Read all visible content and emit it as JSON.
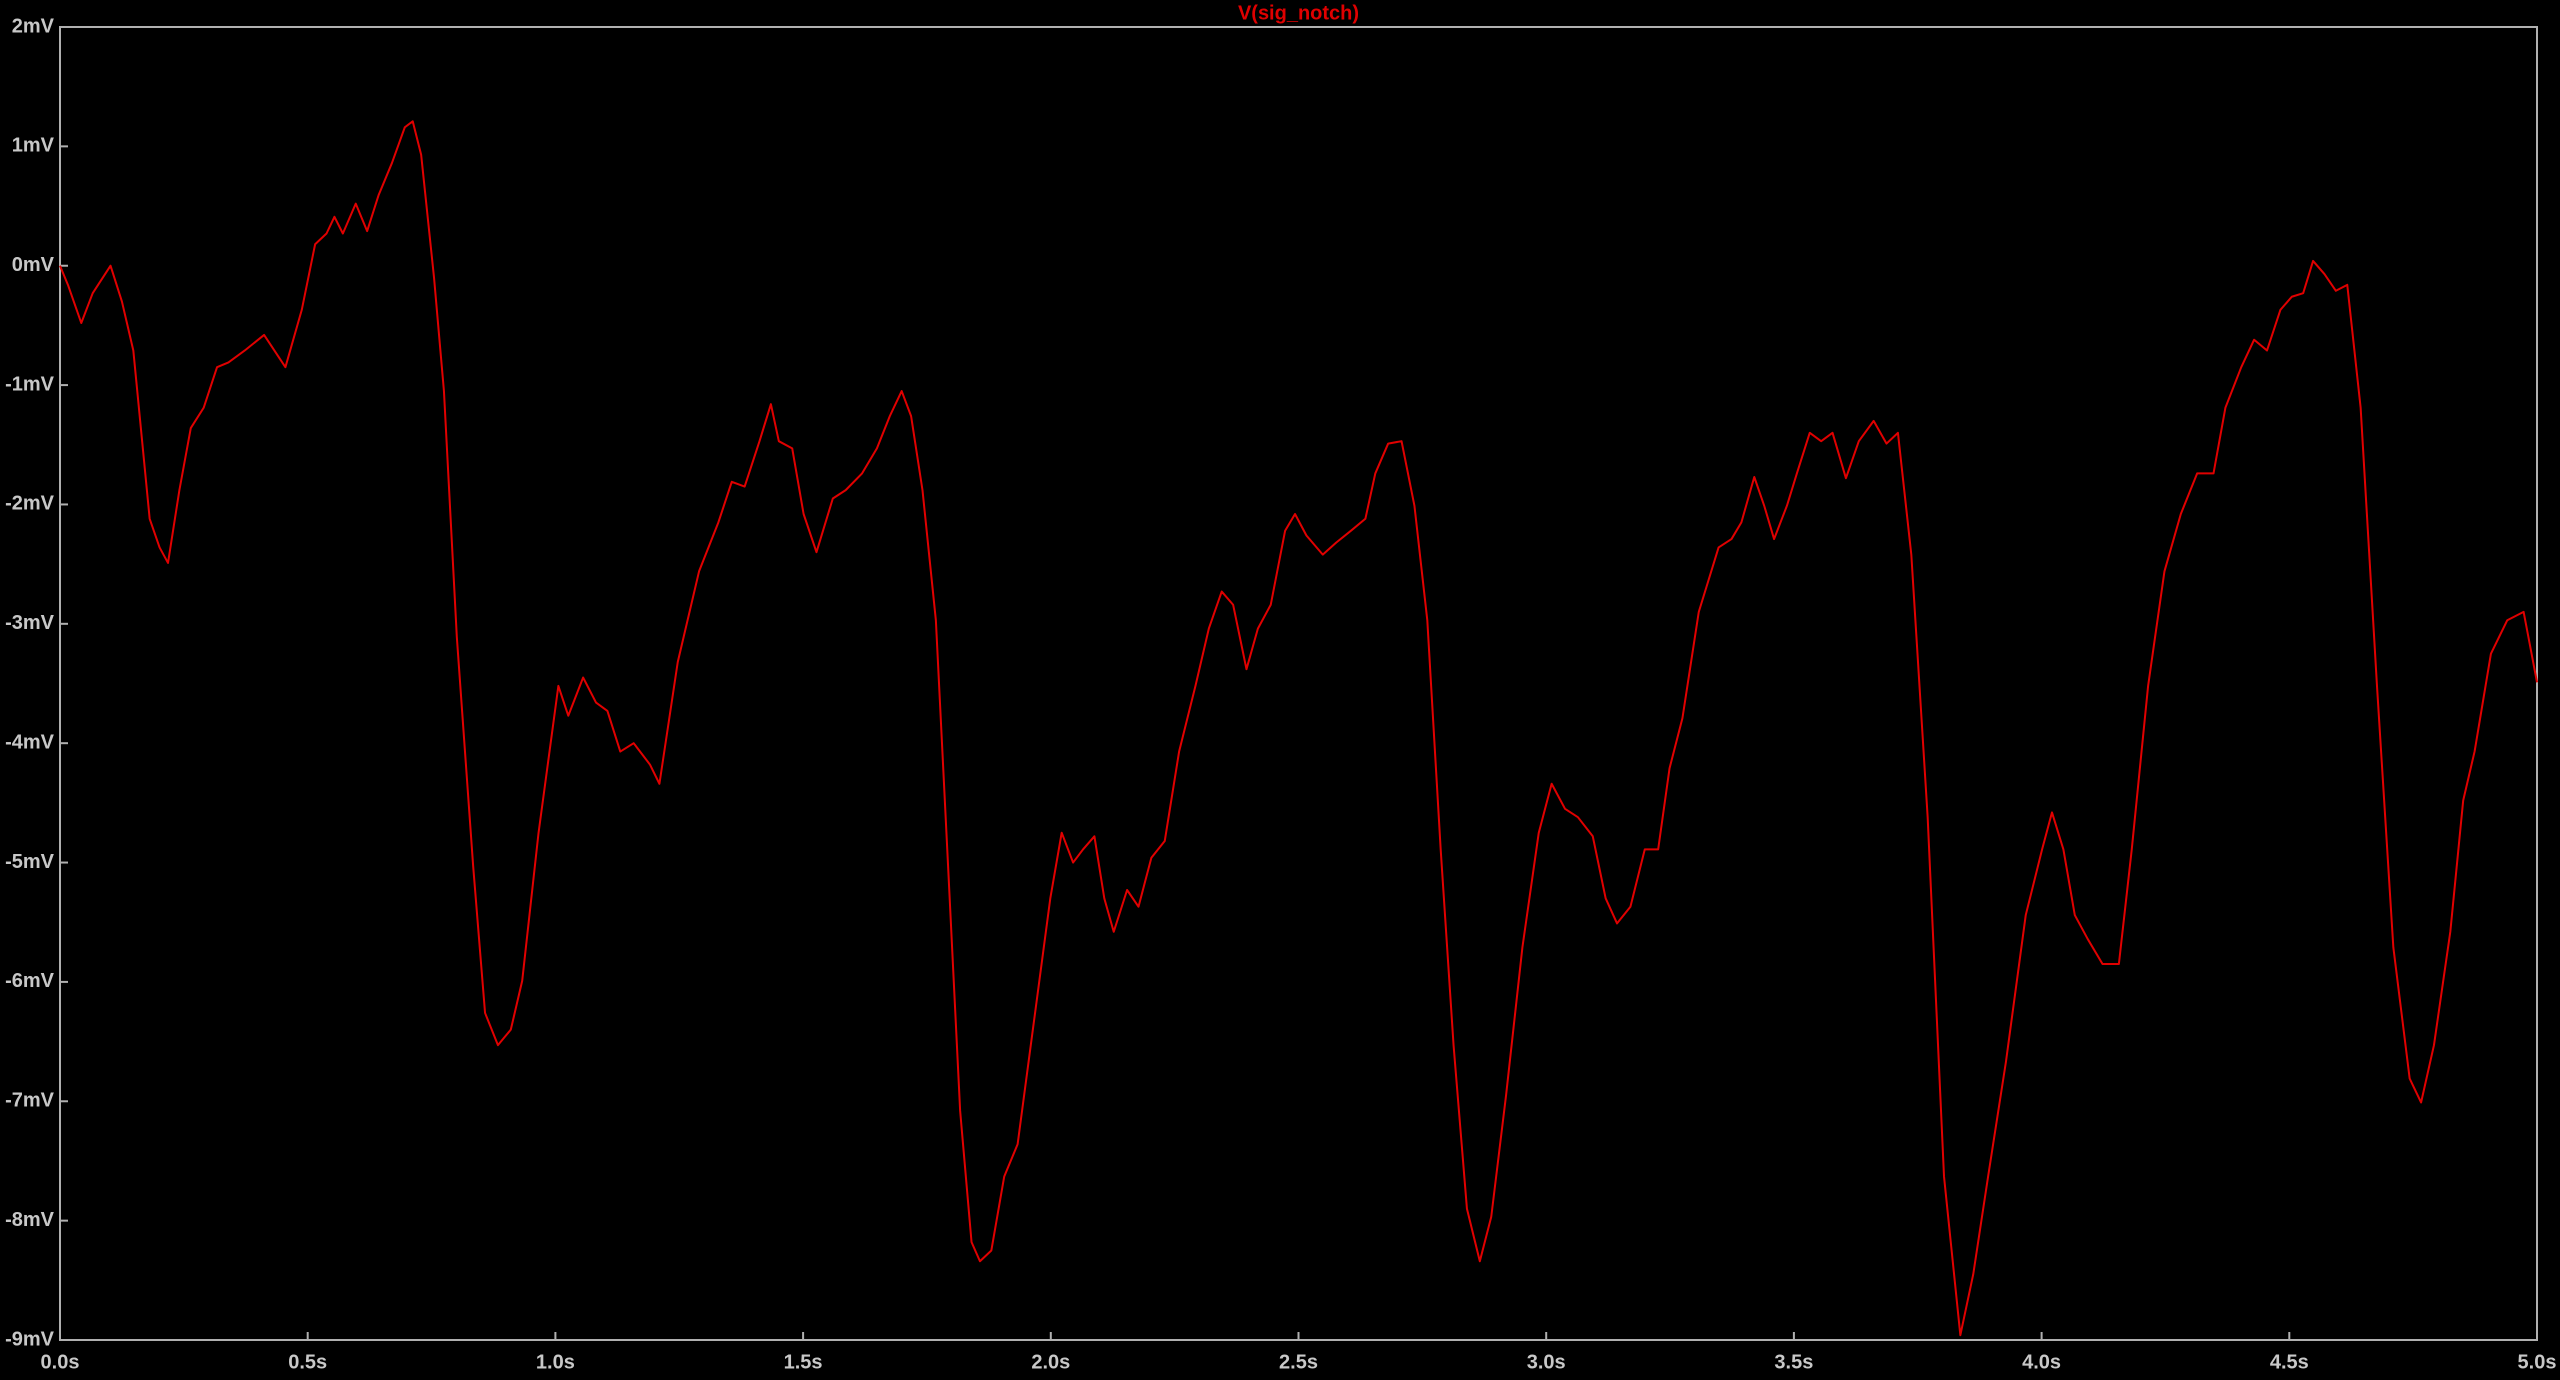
{
  "chart_data": {
    "type": "line",
    "x": [
      0,
      0.016,
      0.043,
      0.066,
      0.102,
      0.125,
      0.148,
      0.181,
      0.201,
      0.218,
      0.241,
      0.264,
      0.29,
      0.317,
      0.34,
      0.373,
      0.412,
      0.455,
      0.488,
      0.515,
      0.538,
      0.554,
      0.571,
      0.597,
      0.62,
      0.643,
      0.67,
      0.696,
      0.712,
      0.729,
      0.755,
      0.775,
      0.801,
      0.834,
      0.858,
      0.884,
      0.91,
      0.933,
      0.966,
      1.006,
      1.026,
      1.056,
      1.082,
      1.105,
      1.131,
      1.158,
      1.191,
      1.21,
      1.247,
      1.29,
      1.329,
      1.356,
      1.382,
      1.412,
      1.435,
      1.451,
      1.478,
      1.501,
      1.527,
      1.56,
      1.586,
      1.619,
      1.649,
      1.675,
      1.699,
      1.718,
      1.741,
      1.768,
      1.791,
      1.817,
      1.84,
      1.857,
      1.88,
      1.906,
      1.933,
      1.966,
      1.999,
      2.022,
      2.045,
      2.065,
      2.088,
      2.108,
      2.127,
      2.154,
      2.177,
      2.203,
      2.23,
      2.259,
      2.292,
      2.319,
      2.345,
      2.368,
      2.395,
      2.418,
      2.444,
      2.473,
      2.493,
      2.516,
      2.549,
      2.576,
      2.606,
      2.635,
      2.655,
      2.681,
      2.708,
      2.734,
      2.76,
      2.787,
      2.813,
      2.84,
      2.866,
      2.889,
      2.919,
      2.952,
      2.985,
      3.011,
      3.038,
      3.064,
      3.094,
      3.12,
      3.143,
      3.17,
      3.199,
      3.226,
      3.249,
      3.275,
      3.308,
      3.348,
      3.374,
      3.394,
      3.42,
      3.44,
      3.46,
      3.486,
      3.506,
      3.532,
      3.555,
      3.578,
      3.605,
      3.631,
      3.661,
      3.687,
      3.71,
      3.737,
      3.77,
      3.803,
      3.836,
      3.862,
      3.892,
      3.928,
      3.968,
      4.001,
      4.021,
      4.044,
      4.067,
      4.093,
      4.123,
      4.156,
      4.182,
      4.215,
      4.248,
      4.281,
      4.314,
      4.347,
      4.371,
      4.403,
      4.429,
      4.455,
      4.482,
      4.505,
      4.528,
      4.548,
      4.571,
      4.594,
      4.617,
      4.644,
      4.677,
      4.71,
      4.743,
      4.766,
      4.792,
      4.825,
      4.851,
      4.874,
      4.907,
      4.94,
      4.973,
      5.0
    ],
    "series": [
      {
        "name": "V(sig_notch)",
        "color": "#e00000",
        "values": [
          0,
          -0.16,
          -0.48,
          -0.23,
          0,
          -0.3,
          -0.71,
          -2.12,
          -2.36,
          -2.49,
          -1.88,
          -1.36,
          -1.19,
          -0.85,
          -0.81,
          -0.71,
          -0.58,
          -0.85,
          -0.37,
          0.18,
          0.27,
          0.41,
          0.27,
          0.52,
          0.29,
          0.59,
          0.86,
          1.16,
          1.21,
          0.93,
          -0.1,
          -1.05,
          -3.11,
          -5.03,
          -6.26,
          -6.53,
          -6.4,
          -5.99,
          -4.75,
          -3.52,
          -3.77,
          -3.45,
          -3.66,
          -3.73,
          -4.07,
          -4.0,
          -4.18,
          -4.34,
          -3.32,
          -2.56,
          -2.15,
          -1.81,
          -1.85,
          -1.47,
          -1.16,
          -1.47,
          -1.53,
          -2.08,
          -2.4,
          -1.95,
          -1.88,
          -1.74,
          -1.53,
          -1.26,
          -1.05,
          -1.26,
          -1.88,
          -2.97,
          -4.89,
          -7.08,
          -8.18,
          -8.34,
          -8.25,
          -7.63,
          -7.36,
          -6.33,
          -5.3,
          -4.75,
          -5.0,
          -4.89,
          -4.78,
          -5.3,
          -5.58,
          -5.23,
          -5.37,
          -4.96,
          -4.82,
          -4.07,
          -3.52,
          -3.04,
          -2.73,
          -2.84,
          -3.38,
          -3.04,
          -2.84,
          -2.22,
          -2.08,
          -2.26,
          -2.42,
          -2.32,
          -2.22,
          -2.12,
          -1.74,
          -1.49,
          -1.47,
          -2.01,
          -2.97,
          -4.89,
          -6.53,
          -7.9,
          -8.34,
          -7.97,
          -6.95,
          -5.71,
          -4.75,
          -4.34,
          -4.55,
          -4.62,
          -4.78,
          -5.3,
          -5.51,
          -5.37,
          -4.89,
          -4.89,
          -4.21,
          -3.79,
          -2.9,
          -2.36,
          -2.29,
          -2.15,
          -1.77,
          -2.01,
          -2.29,
          -2.01,
          -1.74,
          -1.4,
          -1.47,
          -1.4,
          -1.78,
          -1.47,
          -1.3,
          -1.49,
          -1.4,
          -2.42,
          -4.62,
          -7.63,
          -8.96,
          -8.45,
          -7.63,
          -6.67,
          -5.44,
          -4.89,
          -4.58,
          -4.89,
          -5.44,
          -5.64,
          -5.85,
          -5.85,
          -4.89,
          -3.52,
          -2.56,
          -2.08,
          -1.74,
          -1.74,
          -1.19,
          -0.85,
          -0.62,
          -0.71,
          -0.37,
          -0.26,
          -0.23,
          0.04,
          -0.07,
          -0.21,
          -0.16,
          -1.19,
          -3.52,
          -5.71,
          -6.81,
          -7.01,
          -6.53,
          -5.58,
          -4.48,
          -4.07,
          -3.25,
          -2.97,
          -2.9,
          -3.49
        ]
      }
    ],
    "xlim": [
      0,
      5
    ],
    "xticks": [
      {
        "value": 0,
        "label": "0.0s"
      },
      {
        "value": 0.5,
        "label": "0.5s"
      },
      {
        "value": 1,
        "label": "1.0s"
      },
      {
        "value": 1.5,
        "label": "1.5s"
      },
      {
        "value": 2,
        "label": "2.0s"
      },
      {
        "value": 2.5,
        "label": "2.5s"
      },
      {
        "value": 3,
        "label": "3.0s"
      },
      {
        "value": 3.5,
        "label": "3.5s"
      },
      {
        "value": 4,
        "label": "4.0s"
      },
      {
        "value": 4.5,
        "label": "4.5s"
      },
      {
        "value": 5,
        "label": "5.0s"
      }
    ],
    "ylim": [
      -9,
      2
    ],
    "yticks": [
      {
        "value": 2,
        "label": "2mV"
      },
      {
        "value": 1,
        "label": "1mV"
      },
      {
        "value": 0,
        "label": "0mV"
      },
      {
        "value": -1,
        "label": "-1mV"
      },
      {
        "value": -2,
        "label": "-2mV"
      },
      {
        "value": -3,
        "label": "-3mV"
      },
      {
        "value": -4,
        "label": "-4mV"
      },
      {
        "value": -5,
        "label": "-5mV"
      },
      {
        "value": -6,
        "label": "-6mV"
      },
      {
        "value": -7,
        "label": "-7mV"
      },
      {
        "value": -8,
        "label": "-8mV"
      },
      {
        "value": -9,
        "label": "-9mV"
      }
    ],
    "grid": false
  }
}
